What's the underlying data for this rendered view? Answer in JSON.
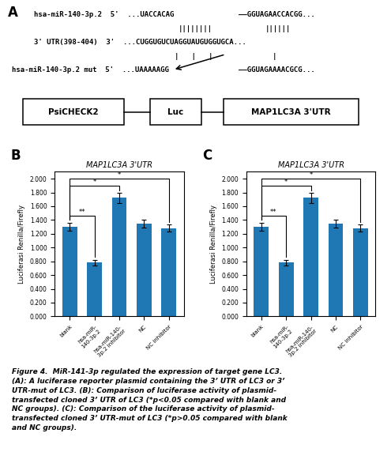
{
  "chart_data": [
    {
      "type": "bar",
      "title": "MAP1LC3A 3'UTR",
      "ylabel": "Luciferasi Renilla/Firefly",
      "categories": [
        "blank",
        "hsa-miR-\n140-3p.2",
        "hsa-miR-140-\n3p.2 inhibitor",
        "NC",
        "NC inhibitor"
      ],
      "values": [
        1.3,
        0.78,
        1.72,
        1.35,
        1.28
      ],
      "errors": [
        0.06,
        0.04,
        0.07,
        0.06,
        0.05
      ],
      "ylim": [
        0,
        2.1
      ],
      "yticks": [
        {
          "value": 0.0,
          "label": "0.000"
        },
        {
          "value": 0.2,
          "label": "0.200"
        },
        {
          "value": 0.4,
          "label": "0.400"
        },
        {
          "value": 0.6,
          "label": "0.600"
        },
        {
          "value": 0.8,
          "label": "0.800"
        },
        {
          "value": 1.0,
          "label": "1.000"
        },
        {
          "value": 1.2,
          "label": "1.200"
        },
        {
          "value": 1.4,
          "label": "1.400"
        },
        {
          "value": 1.6,
          "label": "1.600"
        },
        {
          "value": 1.8,
          "label": "1.800"
        },
        {
          "value": 2.0,
          "label": "2.000"
        }
      ],
      "annotations": [
        {
          "text": "**",
          "between": [
            0,
            1
          ]
        },
        {
          "text": "*",
          "between": [
            0,
            2
          ]
        },
        {
          "text": "*",
          "between": [
            0,
            4
          ]
        }
      ],
      "panel_label": "B"
    },
    {
      "type": "bar",
      "title": "MAP1LC3A 3'UTR",
      "ylabel": "Luciferasi Renilla/Firefly",
      "categories": [
        "blank",
        "hsa-miR-\n140-3p.2",
        "hsa-miR-140-\n3p.2 inhibitor",
        "NC",
        "NC inhibitor"
      ],
      "values": [
        1.3,
        0.78,
        1.72,
        1.35,
        1.28
      ],
      "errors": [
        0.06,
        0.04,
        0.07,
        0.06,
        0.05
      ],
      "ylim": [
        0,
        2.1
      ],
      "yticks": [
        {
          "value": 0.0,
          "label": "0.000"
        },
        {
          "value": 0.2,
          "label": "0.200"
        },
        {
          "value": 0.4,
          "label": "0.400"
        },
        {
          "value": 0.6,
          "label": "0.600"
        },
        {
          "value": 0.8,
          "label": "0.800"
        },
        {
          "value": 1.0,
          "label": "1.000"
        },
        {
          "value": 1.2,
          "label": "1.200"
        },
        {
          "value": 1.4,
          "label": "1.400"
        },
        {
          "value": 1.6,
          "label": "1.600"
        },
        {
          "value": 1.8,
          "label": "1.800"
        },
        {
          "value": 2.0,
          "label": "2.000"
        }
      ],
      "annotations": [
        {
          "text": "**",
          "between": [
            0,
            1
          ]
        },
        {
          "text": "*",
          "between": [
            0,
            2
          ]
        },
        {
          "text": "*",
          "between": [
            0,
            4
          ]
        }
      ],
      "panel_label": "C"
    }
  ],
  "panel_A": {
    "label": "A",
    "rows": [
      [
        "hsa-miR-140-3p.2  5'  ...UACCACAG",
        "——GGUAGAACCACGG..."
      ],
      [
        "||||||||",
        "||||||"
      ],
      [
        "3' UTR(398-404)  3'  ...CUGGUGUCUAGGUAUGUGGUGCA..."
      ],
      [
        "|   |   |",
        "|"
      ],
      [
        "hsa-miR-140-3p.2 mut  5'  ...UAAAAAGG",
        "——GGUAGAAAACGCG..."
      ]
    ]
  },
  "plasmid": [
    "PsiCHECK2",
    "Luc",
    "MAP1LC3A 3'UTR"
  ],
  "caption": "Figure 4.  MiR-141-3p regulated the expression of target gene LC3.\n(A): A luciferase reporter plasmid containing the 3’ UTR of LC3 or 3’\nUTR-mut of LC3. (B): Comparison of luciferase activity of plasmid-\ntransfected cloned 3’ UTR of LC3 (*p<0.05 compared with blank and\nNC groups). (C): Comparison of the luciferase activity of plasmid-\ntransfected cloned 3’ UTR-mut of LC3 (*p>0.05 compared with blank\nand NC groups)."
}
